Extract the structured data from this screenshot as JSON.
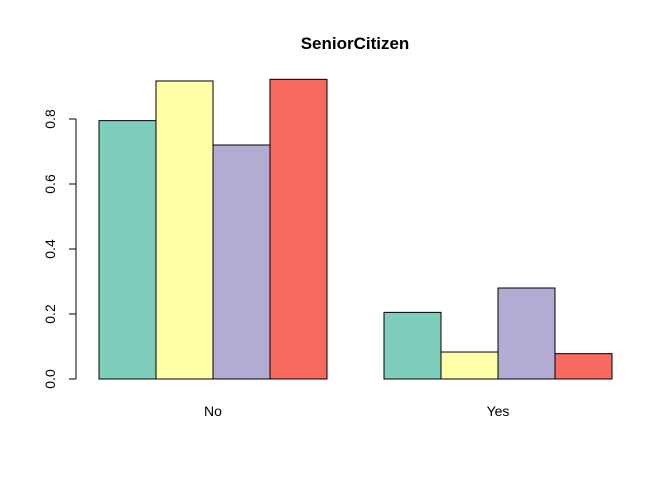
{
  "chart_data": {
    "type": "bar",
    "title": "SeniorCitizen",
    "xlabel": "",
    "ylabel": "",
    "categories": [
      "No",
      "Yes"
    ],
    "series": [
      {
        "values": [
          0.795,
          0.205
        ],
        "color": "#7fcdbb"
      },
      {
        "values": [
          0.917,
          0.083
        ],
        "color": "#ffffa8"
      },
      {
        "values": [
          0.72,
          0.28
        ],
        "color": "#b2abd2"
      },
      {
        "values": [
          0.922,
          0.078
        ],
        "color": "#f8695f"
      }
    ],
    "ylim": [
      0,
      0.95
    ],
    "yticks": [
      0.0,
      0.2,
      0.4,
      0.6,
      0.8
    ],
    "ytick_labels": [
      "0.0",
      "0.2",
      "0.4",
      "0.6",
      "0.8"
    ],
    "grid": false,
    "legend": "none"
  }
}
